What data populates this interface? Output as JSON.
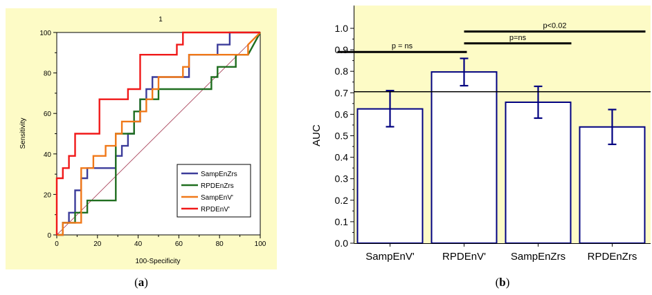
{
  "panel_a": {
    "panel_title": "1",
    "caption_prefix": "(",
    "caption_letter": "a",
    "caption_suffix": ")"
  },
  "panel_b": {
    "caption_prefix": "(",
    "caption_letter": "b",
    "caption_suffix": ")"
  },
  "colors": {
    "panel_bg": "#fdfbc6",
    "SampEnZrs": "#3c3c9a",
    "RPDEnZrs": "#1f6e1f",
    "SampEnV": "#f07818",
    "RPDEnV": "#f01818",
    "diagonal": "#a0304a",
    "bar_edge": "#000080",
    "chance_line": "#000000"
  },
  "chart_data": [
    {
      "type": "line",
      "title": "1",
      "xlabel": "100-Specificity",
      "ylabel": "Sensitivity",
      "xlim": [
        0,
        100
      ],
      "ylim": [
        0,
        100
      ],
      "xticks": [
        0,
        20,
        40,
        60,
        80,
        100
      ],
      "yticks": [
        0,
        20,
        40,
        60,
        80,
        100
      ],
      "legend_position": "bottom-right",
      "series": [
        {
          "name": "SampEnZrs",
          "x": [
            0,
            3,
            3,
            6,
            6,
            9,
            9,
            12,
            12,
            15,
            15,
            24,
            24,
            29,
            29,
            32,
            32,
            35,
            35,
            38,
            38,
            41,
            41,
            44,
            44,
            47,
            47,
            50,
            50,
            56,
            56,
            59,
            59,
            65,
            65,
            68,
            68,
            79,
            79,
            85,
            85,
            100
          ],
          "y": [
            0,
            0,
            6,
            6,
            11,
            11,
            22,
            22,
            28,
            28,
            33,
            33,
            33,
            33,
            39,
            39,
            44,
            44,
            50,
            50,
            56,
            56,
            67,
            67,
            72,
            72,
            78,
            78,
            78,
            78,
            78,
            78,
            78,
            78,
            89,
            89,
            89,
            89,
            94,
            94,
            100,
            100
          ]
        },
        {
          "name": "RPDEnZrs",
          "x": [
            0,
            3,
            3,
            9,
            9,
            12,
            12,
            15,
            15,
            29,
            29,
            38,
            38,
            41,
            41,
            44,
            44,
            50,
            50,
            71,
            71,
            76,
            76,
            79,
            79,
            88,
            88,
            94,
            94,
            100
          ],
          "y": [
            0,
            0,
            6,
            6,
            11,
            11,
            11,
            11,
            17,
            17,
            50,
            50,
            61,
            61,
            67,
            67,
            67,
            67,
            72,
            72,
            72,
            72,
            78,
            78,
            83,
            83,
            89,
            89,
            89,
            100
          ]
        },
        {
          "name": "SampEnV'",
          "x": [
            0,
            3,
            3,
            12,
            12,
            18,
            18,
            24,
            24,
            29,
            29,
            32,
            32,
            38,
            38,
            41,
            41,
            44,
            44,
            47,
            47,
            50,
            50,
            62,
            62,
            65,
            65,
            94,
            94,
            100
          ],
          "y": [
            0,
            0,
            6,
            6,
            33,
            33,
            39,
            39,
            44,
            44,
            50,
            50,
            56,
            56,
            56,
            56,
            61,
            61,
            67,
            67,
            72,
            72,
            78,
            78,
            83,
            83,
            89,
            89,
            94,
            100
          ]
        },
        {
          "name": "RPDEnV'",
          "x": [
            0,
            0,
            3,
            3,
            6,
            6,
            9,
            9,
            21,
            21,
            35,
            35,
            41,
            41,
            59,
            59,
            62,
            62,
            100
          ],
          "y": [
            0,
            28,
            28,
            33,
            33,
            39,
            39,
            50,
            50,
            67,
            67,
            72,
            72,
            89,
            89,
            94,
            94,
            100,
            100
          ]
        }
      ]
    },
    {
      "type": "bar",
      "categories": [
        "SampEnV'",
        "RPDEnV'",
        "SampEnZrs",
        "RPDEnZrs"
      ],
      "values": [
        0.625,
        0.797,
        0.656,
        0.541
      ],
      "error_low": [
        0.542,
        0.733,
        0.582,
        0.46
      ],
      "error_high": [
        0.71,
        0.86,
        0.73,
        0.622
      ],
      "ylabel": "AUC",
      "xlabel": "",
      "ylim": [
        0,
        1.05
      ],
      "yticks": [
        "0.0",
        "0.1",
        "0.2",
        "0.3",
        "0.4",
        "0.5",
        "0.6",
        "0.7",
        "0.8",
        "0.9",
        "1.0"
      ],
      "reference_line": 0.705,
      "annotations": [
        {
          "text": "p = ns",
          "from": 0,
          "to": 1,
          "y": 0.89
        },
        {
          "text": "p=ns",
          "from": 1,
          "to": 2,
          "y": 0.93
        },
        {
          "text": "p<0.02",
          "from": 1,
          "to": 3,
          "y": 0.985
        }
      ]
    }
  ]
}
